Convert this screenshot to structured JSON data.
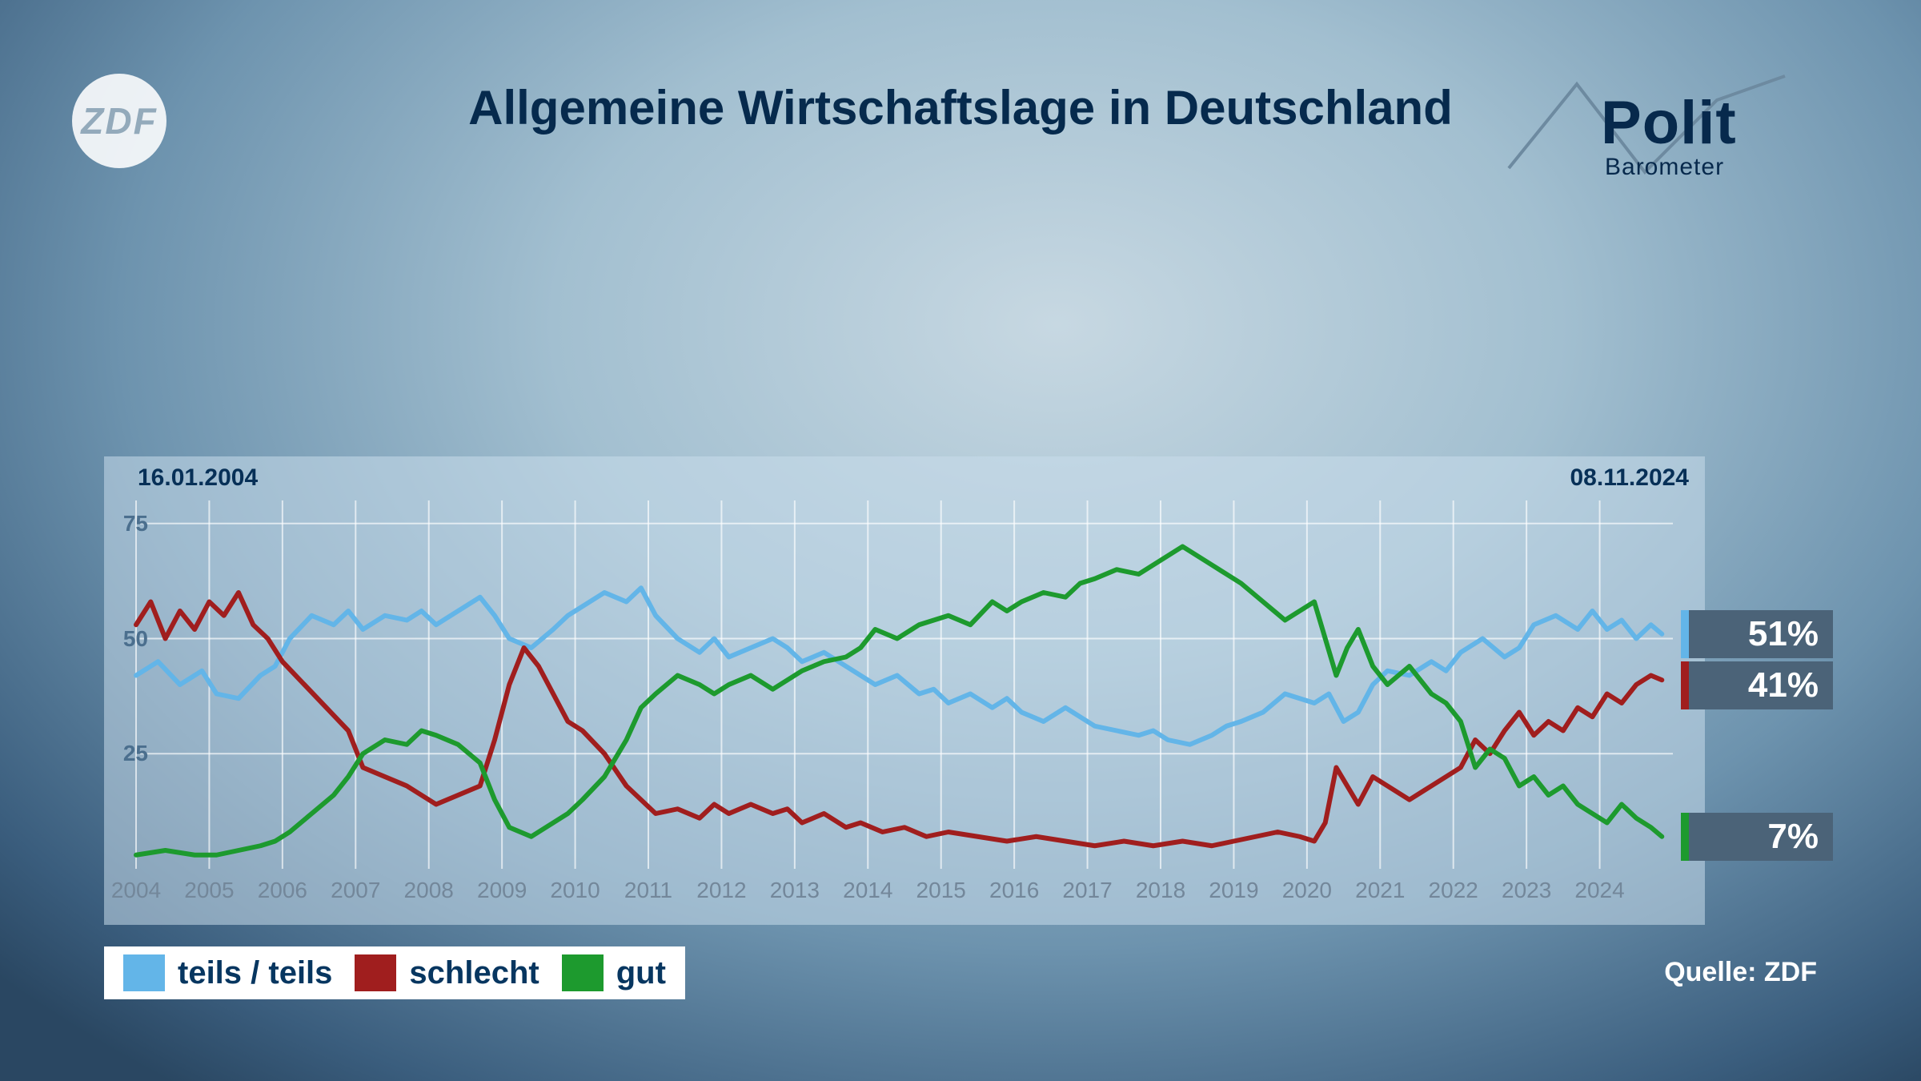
{
  "header": {
    "broadcaster_logo_text": "ZDF",
    "title": "Allgemeine Wirtschaftslage in Deutschland",
    "program_logo_bold": "Polit",
    "program_logo_sub": "Barometer",
    "program_logo_line_color": "#6d8aa0"
  },
  "chart": {
    "type": "line",
    "date_start": "16.01.2004",
    "date_end": "08.11.2024",
    "plot_area_color": "rgba(200,220,235,0.55)",
    "grid_color": "#ffffff",
    "grid_opacity": 0.65,
    "axis_label_color": "#4b6f8e",
    "x": {
      "min": 2004,
      "max": 2025,
      "ticks": [
        2004,
        2005,
        2006,
        2007,
        2008,
        2009,
        2010,
        2011,
        2012,
        2013,
        2014,
        2015,
        2016,
        2017,
        2018,
        2019,
        2020,
        2021,
        2022,
        2023,
        2024
      ]
    },
    "y": {
      "min": 0,
      "max": 80,
      "ticks": [
        25,
        50,
        75
      ]
    },
    "line_width": 6,
    "series": [
      {
        "id": "teils",
        "label": "teils / teils",
        "color": "#63b5e8",
        "end_value_label": "51%",
        "end_value": 51,
        "data": [
          [
            2004.0,
            42
          ],
          [
            2004.3,
            45
          ],
          [
            2004.6,
            40
          ],
          [
            2004.9,
            43
          ],
          [
            2005.1,
            38
          ],
          [
            2005.4,
            37
          ],
          [
            2005.7,
            42
          ],
          [
            2005.9,
            44
          ],
          [
            2006.1,
            50
          ],
          [
            2006.4,
            55
          ],
          [
            2006.7,
            53
          ],
          [
            2006.9,
            56
          ],
          [
            2007.1,
            52
          ],
          [
            2007.4,
            55
          ],
          [
            2007.7,
            54
          ],
          [
            2007.9,
            56
          ],
          [
            2008.1,
            53
          ],
          [
            2008.4,
            56
          ],
          [
            2008.7,
            59
          ],
          [
            2008.9,
            55
          ],
          [
            2009.1,
            50
          ],
          [
            2009.4,
            48
          ],
          [
            2009.7,
            52
          ],
          [
            2009.9,
            55
          ],
          [
            2010.1,
            57
          ],
          [
            2010.4,
            60
          ],
          [
            2010.7,
            58
          ],
          [
            2010.9,
            61
          ],
          [
            2011.1,
            55
          ],
          [
            2011.4,
            50
          ],
          [
            2011.7,
            47
          ],
          [
            2011.9,
            50
          ],
          [
            2012.1,
            46
          ],
          [
            2012.4,
            48
          ],
          [
            2012.7,
            50
          ],
          [
            2012.9,
            48
          ],
          [
            2013.1,
            45
          ],
          [
            2013.4,
            47
          ],
          [
            2013.7,
            44
          ],
          [
            2013.9,
            42
          ],
          [
            2014.1,
            40
          ],
          [
            2014.4,
            42
          ],
          [
            2014.7,
            38
          ],
          [
            2014.9,
            39
          ],
          [
            2015.1,
            36
          ],
          [
            2015.4,
            38
          ],
          [
            2015.7,
            35
          ],
          [
            2015.9,
            37
          ],
          [
            2016.1,
            34
          ],
          [
            2016.4,
            32
          ],
          [
            2016.7,
            35
          ],
          [
            2016.9,
            33
          ],
          [
            2017.1,
            31
          ],
          [
            2017.4,
            30
          ],
          [
            2017.7,
            29
          ],
          [
            2017.9,
            30
          ],
          [
            2018.1,
            28
          ],
          [
            2018.4,
            27
          ],
          [
            2018.7,
            29
          ],
          [
            2018.9,
            31
          ],
          [
            2019.1,
            32
          ],
          [
            2019.4,
            34
          ],
          [
            2019.7,
            38
          ],
          [
            2019.9,
            37
          ],
          [
            2020.1,
            36
          ],
          [
            2020.3,
            38
          ],
          [
            2020.5,
            32
          ],
          [
            2020.7,
            34
          ],
          [
            2020.9,
            40
          ],
          [
            2021.1,
            43
          ],
          [
            2021.4,
            42
          ],
          [
            2021.7,
            45
          ],
          [
            2021.9,
            43
          ],
          [
            2022.1,
            47
          ],
          [
            2022.4,
            50
          ],
          [
            2022.7,
            46
          ],
          [
            2022.9,
            48
          ],
          [
            2023.1,
            53
          ],
          [
            2023.4,
            55
          ],
          [
            2023.7,
            52
          ],
          [
            2023.9,
            56
          ],
          [
            2024.1,
            52
          ],
          [
            2024.3,
            54
          ],
          [
            2024.5,
            50
          ],
          [
            2024.7,
            53
          ],
          [
            2024.85,
            51
          ]
        ]
      },
      {
        "id": "schlecht",
        "label": "schlecht",
        "color": "#a01e1e",
        "end_value_label": "41%",
        "end_value": 41,
        "data": [
          [
            2004.0,
            53
          ],
          [
            2004.2,
            58
          ],
          [
            2004.4,
            50
          ],
          [
            2004.6,
            56
          ],
          [
            2004.8,
            52
          ],
          [
            2005.0,
            58
          ],
          [
            2005.2,
            55
          ],
          [
            2005.4,
            60
          ],
          [
            2005.6,
            53
          ],
          [
            2005.8,
            50
          ],
          [
            2006.0,
            45
          ],
          [
            2006.3,
            40
          ],
          [
            2006.6,
            35
          ],
          [
            2006.9,
            30
          ],
          [
            2007.1,
            22
          ],
          [
            2007.4,
            20
          ],
          [
            2007.7,
            18
          ],
          [
            2007.9,
            16
          ],
          [
            2008.1,
            14
          ],
          [
            2008.4,
            16
          ],
          [
            2008.7,
            18
          ],
          [
            2008.9,
            28
          ],
          [
            2009.1,
            40
          ],
          [
            2009.3,
            48
          ],
          [
            2009.5,
            44
          ],
          [
            2009.7,
            38
          ],
          [
            2009.9,
            32
          ],
          [
            2010.1,
            30
          ],
          [
            2010.4,
            25
          ],
          [
            2010.7,
            18
          ],
          [
            2010.9,
            15
          ],
          [
            2011.1,
            12
          ],
          [
            2011.4,
            13
          ],
          [
            2011.7,
            11
          ],
          [
            2011.9,
            14
          ],
          [
            2012.1,
            12
          ],
          [
            2012.4,
            14
          ],
          [
            2012.7,
            12
          ],
          [
            2012.9,
            13
          ],
          [
            2013.1,
            10
          ],
          [
            2013.4,
            12
          ],
          [
            2013.7,
            9
          ],
          [
            2013.9,
            10
          ],
          [
            2014.2,
            8
          ],
          [
            2014.5,
            9
          ],
          [
            2014.8,
            7
          ],
          [
            2015.1,
            8
          ],
          [
            2015.5,
            7
          ],
          [
            2015.9,
            6
          ],
          [
            2016.3,
            7
          ],
          [
            2016.7,
            6
          ],
          [
            2017.1,
            5
          ],
          [
            2017.5,
            6
          ],
          [
            2017.9,
            5
          ],
          [
            2018.3,
            6
          ],
          [
            2018.7,
            5
          ],
          [
            2019.0,
            6
          ],
          [
            2019.3,
            7
          ],
          [
            2019.6,
            8
          ],
          [
            2019.9,
            7
          ],
          [
            2020.1,
            6
          ],
          [
            2020.25,
            10
          ],
          [
            2020.4,
            22
          ],
          [
            2020.55,
            18
          ],
          [
            2020.7,
            14
          ],
          [
            2020.9,
            20
          ],
          [
            2021.1,
            18
          ],
          [
            2021.4,
            15
          ],
          [
            2021.7,
            18
          ],
          [
            2021.9,
            20
          ],
          [
            2022.1,
            22
          ],
          [
            2022.3,
            28
          ],
          [
            2022.5,
            25
          ],
          [
            2022.7,
            30
          ],
          [
            2022.9,
            34
          ],
          [
            2023.1,
            29
          ],
          [
            2023.3,
            32
          ],
          [
            2023.5,
            30
          ],
          [
            2023.7,
            35
          ],
          [
            2023.9,
            33
          ],
          [
            2024.1,
            38
          ],
          [
            2024.3,
            36
          ],
          [
            2024.5,
            40
          ],
          [
            2024.7,
            42
          ],
          [
            2024.85,
            41
          ]
        ]
      },
      {
        "id": "gut",
        "label": "gut",
        "color": "#1d9a2e",
        "end_value_label": "7%",
        "end_value": 7,
        "data": [
          [
            2004.0,
            3
          ],
          [
            2004.4,
            4
          ],
          [
            2004.8,
            3
          ],
          [
            2005.1,
            3
          ],
          [
            2005.4,
            4
          ],
          [
            2005.7,
            5
          ],
          [
            2005.9,
            6
          ],
          [
            2006.1,
            8
          ],
          [
            2006.4,
            12
          ],
          [
            2006.7,
            16
          ],
          [
            2006.9,
            20
          ],
          [
            2007.1,
            25
          ],
          [
            2007.4,
            28
          ],
          [
            2007.7,
            27
          ],
          [
            2007.9,
            30
          ],
          [
            2008.1,
            29
          ],
          [
            2008.4,
            27
          ],
          [
            2008.7,
            23
          ],
          [
            2008.9,
            15
          ],
          [
            2009.1,
            9
          ],
          [
            2009.4,
            7
          ],
          [
            2009.7,
            10
          ],
          [
            2009.9,
            12
          ],
          [
            2010.1,
            15
          ],
          [
            2010.4,
            20
          ],
          [
            2010.7,
            28
          ],
          [
            2010.9,
            35
          ],
          [
            2011.1,
            38
          ],
          [
            2011.4,
            42
          ],
          [
            2011.7,
            40
          ],
          [
            2011.9,
            38
          ],
          [
            2012.1,
            40
          ],
          [
            2012.4,
            42
          ],
          [
            2012.7,
            39
          ],
          [
            2012.9,
            41
          ],
          [
            2013.1,
            43
          ],
          [
            2013.4,
            45
          ],
          [
            2013.7,
            46
          ],
          [
            2013.9,
            48
          ],
          [
            2014.1,
            52
          ],
          [
            2014.4,
            50
          ],
          [
            2014.7,
            53
          ],
          [
            2014.9,
            54
          ],
          [
            2015.1,
            55
          ],
          [
            2015.4,
            53
          ],
          [
            2015.7,
            58
          ],
          [
            2015.9,
            56
          ],
          [
            2016.1,
            58
          ],
          [
            2016.4,
            60
          ],
          [
            2016.7,
            59
          ],
          [
            2016.9,
            62
          ],
          [
            2017.1,
            63
          ],
          [
            2017.4,
            65
          ],
          [
            2017.7,
            64
          ],
          [
            2017.9,
            66
          ],
          [
            2018.1,
            68
          ],
          [
            2018.3,
            70
          ],
          [
            2018.5,
            68
          ],
          [
            2018.7,
            66
          ],
          [
            2018.9,
            64
          ],
          [
            2019.1,
            62
          ],
          [
            2019.4,
            58
          ],
          [
            2019.7,
            54
          ],
          [
            2019.9,
            56
          ],
          [
            2020.1,
            58
          ],
          [
            2020.25,
            50
          ],
          [
            2020.4,
            42
          ],
          [
            2020.55,
            48
          ],
          [
            2020.7,
            52
          ],
          [
            2020.9,
            44
          ],
          [
            2021.1,
            40
          ],
          [
            2021.4,
            44
          ],
          [
            2021.7,
            38
          ],
          [
            2021.9,
            36
          ],
          [
            2022.1,
            32
          ],
          [
            2022.3,
            22
          ],
          [
            2022.5,
            26
          ],
          [
            2022.7,
            24
          ],
          [
            2022.9,
            18
          ],
          [
            2023.1,
            20
          ],
          [
            2023.3,
            16
          ],
          [
            2023.5,
            18
          ],
          [
            2023.7,
            14
          ],
          [
            2023.9,
            12
          ],
          [
            2024.1,
            10
          ],
          [
            2024.3,
            14
          ],
          [
            2024.5,
            11
          ],
          [
            2024.7,
            9
          ],
          [
            2024.85,
            7
          ]
        ]
      }
    ],
    "badge_bg": "#4b6378",
    "badge_text_color": "#ffffff"
  },
  "legend": {
    "bg": "#ffffff",
    "text_color": "#073660",
    "items": [
      {
        "swatch": "#63b5e8",
        "label": "teils / teils"
      },
      {
        "swatch": "#a01e1e",
        "label": "schlecht"
      },
      {
        "swatch": "#1d9a2e",
        "label": "gut"
      }
    ]
  },
  "source": {
    "label": "Quelle: ZDF",
    "color": "#ffffff"
  }
}
